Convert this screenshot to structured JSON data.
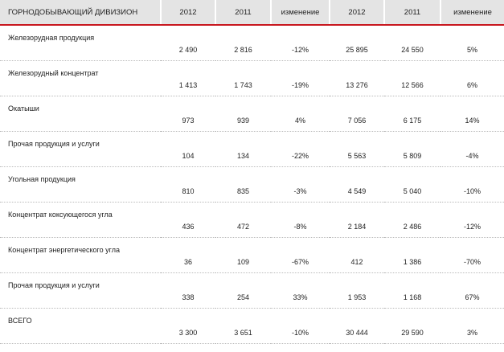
{
  "table": {
    "header": [
      "ГОРНОДОБЫВАЮЩИЙ ДИВИЗИОН",
      "2012",
      "2011",
      "изменение",
      "2012",
      "2011",
      "изменение"
    ],
    "rows": [
      [
        "Железорудная продукция",
        "2 490",
        "2 816",
        "-12%",
        "25 895",
        "24 550",
        "5%"
      ],
      [
        "Железорудный концентрат",
        "1 413",
        "1 743",
        "-19%",
        "13 276",
        "12 566",
        "6%"
      ],
      [
        "Окатыши",
        "973",
        "939",
        "4%",
        "7 056",
        "6 175",
        "14%"
      ],
      [
        "Прочая продукция и услуги",
        "104",
        "134",
        "-22%",
        "5 563",
        "5 809",
        "-4%"
      ],
      [
        "Угольная продукция",
        "810",
        "835",
        "-3%",
        "4 549",
        "5 040",
        "-10%"
      ],
      [
        "Концентрат коксующегося угла",
        "436",
        "472",
        "-8%",
        "2 184",
        "2 486",
        "-12%"
      ],
      [
        "Концентрат энергетического угла",
        "36",
        "109",
        "-67%",
        "412",
        "1 386",
        "-70%"
      ],
      [
        "Прочая продукция и услуги",
        "338",
        "254",
        "33%",
        "1 953",
        "1 168",
        "67%"
      ],
      [
        "ВСЕГО",
        "3 300",
        "3 651",
        "-10%",
        "30 444",
        "29 590",
        "3%"
      ]
    ]
  }
}
